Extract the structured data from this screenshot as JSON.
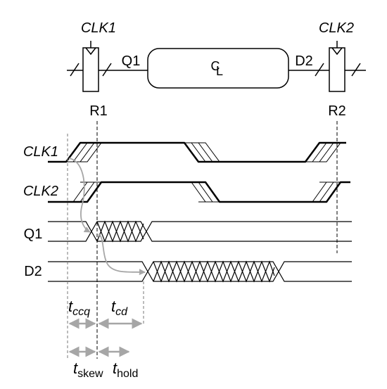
{
  "circuit": {
    "clk1_label": "CLK1",
    "clk2_label": "CLK2",
    "q1_label": "Q1",
    "d2_label": "D2",
    "cl_label_c": "C",
    "cl_label_l": "L",
    "r1_label": "R1",
    "r2_label": "R2"
  },
  "waveforms": {
    "clk1_label": "CLK1",
    "clk2_label": "CLK2",
    "q1_label": "Q1",
    "d2_label": "D2"
  },
  "timing": {
    "tccq_main": "t",
    "tccq_sub": "ccq",
    "tcd_main": "t",
    "tcd_sub": "cd",
    "tskew_main": "t",
    "tskew_sub": "skew",
    "thold_main": "t",
    "thold_sub": "hold"
  },
  "colors": {
    "line": "#000000",
    "annotation": "#a6a6a6",
    "dashed": "#666666"
  }
}
